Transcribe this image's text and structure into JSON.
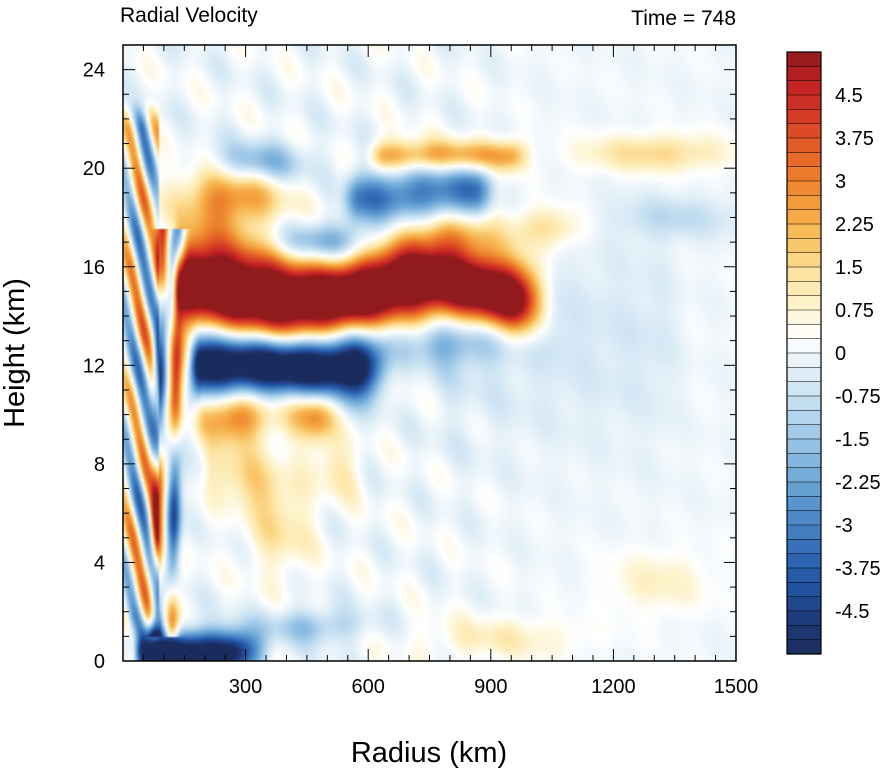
{
  "chart_data": {
    "type": "heatmap",
    "title_left": "Radial Velocity",
    "title_right": "Time = 748",
    "xlabel": "Radius (km)",
    "ylabel": "Height (km)",
    "xlim": [
      0,
      1500
    ],
    "ylim": [
      0,
      25
    ],
    "xticks": [
      300,
      600,
      900,
      1200,
      1500
    ],
    "yticks": [
      0,
      4,
      8,
      12,
      16,
      20,
      24
    ],
    "colorbar": {
      "min": -5.25,
      "max": 5.25,
      "step": 0.25,
      "label_values": [
        4.5,
        3.75,
        3,
        2.25,
        1.5,
        0.75,
        0,
        -0.75,
        -1.5,
        -2.25,
        -3,
        -3.75,
        -4.5
      ],
      "tick_labels": [
        "4.5",
        "3.75",
        "3",
        "2.25",
        "1.5",
        "0.75",
        "0",
        "-0.75",
        "-1.5",
        "-2.25",
        "-3",
        "-3.75",
        "-4.5"
      ],
      "colors_low_to_high": [
        "#1a2c5c",
        "#1f3a7a",
        "#22509c",
        "#2f66b3",
        "#4581c2",
        "#5f9bd1",
        "#7fb3dd",
        "#a3cae8",
        "#c6e0f2",
        "#e3f0f8",
        "#ffffff",
        "#fdf3cc",
        "#fde3a0",
        "#f9c466",
        "#f5a340",
        "#ec7f2c",
        "#e35c25",
        "#d53b25",
        "#c22224",
        "#8f1a1c"
      ]
    },
    "features": [
      {
        "kind": "band",
        "sign": "positive",
        "r_range": [
          130,
          1050
        ],
        "z_center": 15.0,
        "z_halfwidth": 1.0,
        "peak": 5.2
      },
      {
        "kind": "band",
        "sign": "negative",
        "r_range": [
          150,
          650
        ],
        "z_center": 12.0,
        "z_halfwidth": 0.9,
        "peak": -5.0
      },
      {
        "kind": "band",
        "sign": "positive",
        "r_range": [
          150,
          550
        ],
        "z_center": 10.0,
        "z_halfwidth": 0.8,
        "peak": 3.0
      },
      {
        "kind": "band",
        "sign": "negative",
        "r_range": [
          0,
          350
        ],
        "z_center": 0.6,
        "z_halfwidth": 0.6,
        "peak": -4.5
      },
      {
        "kind": "band",
        "sign": "positive",
        "r_range": [
          600,
          1000
        ],
        "z_center": 20.6,
        "z_halfwidth": 0.5,
        "peak": 1.8
      },
      {
        "kind": "band",
        "sign": "negative",
        "r_range": [
          500,
          900
        ],
        "z_center": 18.7,
        "z_halfwidth": 0.8,
        "peak": -2.5
      },
      {
        "kind": "band",
        "sign": "positive",
        "r_range": [
          1150,
          1450
        ],
        "z_center": 20.3,
        "z_halfwidth": 0.4,
        "peak": 1.2
      },
      {
        "kind": "band",
        "sign": "positive",
        "r_range": [
          750,
          1100
        ],
        "z_center": 0.8,
        "z_halfwidth": 0.6,
        "peak": 0.8
      }
    ]
  }
}
